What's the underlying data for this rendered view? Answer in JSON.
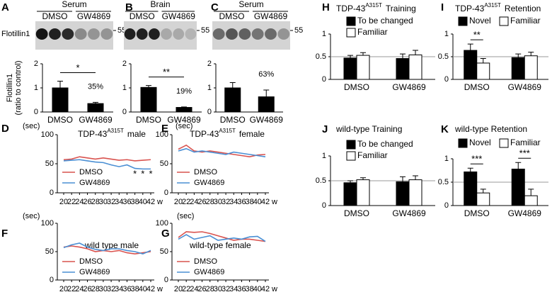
{
  "chart_data": [
    {
      "type": "bar",
      "panel": "A",
      "blot_title": "Serum",
      "blot_labels": [
        "DMSO",
        "GW4869"
      ],
      "blot_marker": "55",
      "blot_protein": "Flotillin1",
      "ylabel": [
        "Flotillin1",
        "(ratio to control)"
      ],
      "categories": [
        "DMSO",
        "GW4869"
      ],
      "values": [
        1.0,
        0.35
      ],
      "errors": [
        0.28,
        0.05
      ],
      "color": "#000000",
      "ylim": [
        0,
        2
      ],
      "yticks": [
        0,
        1,
        2
      ],
      "percent_label": "35%",
      "significance": "*"
    },
    {
      "type": "bar",
      "panel": "B",
      "blot_title": "Brain",
      "blot_labels": [
        "DMSO",
        "GW4869"
      ],
      "blot_marker": "55",
      "categories": [
        "DMSO",
        "GW4869"
      ],
      "values": [
        1.02,
        0.19
      ],
      "errors": [
        0.08,
        0.02
      ],
      "color": "#000000",
      "ylim": [
        0,
        2
      ],
      "yticks": [
        0,
        1,
        2
      ],
      "percent_label": "19%",
      "significance": "**"
    },
    {
      "type": "bar",
      "panel": "C",
      "blot_title": "Serum",
      "blot_labels": [
        "DMSO",
        "GW4869"
      ],
      "blot_marker": "55",
      "categories": [
        "DMSO",
        "GW4869"
      ],
      "values": [
        1.0,
        0.63
      ],
      "errors": [
        0.22,
        0.28
      ],
      "color": "#000000",
      "ylim": [
        0,
        2
      ],
      "yticks": [
        0,
        1,
        2
      ],
      "percent_label": "63%"
    },
    {
      "type": "line",
      "panel": "D",
      "title": {
        "main": "TDP-43",
        "sup": "A315T",
        "rest": "male"
      },
      "ylabel": "(sec)",
      "x_unit": "w",
      "x": [
        20,
        22,
        24,
        26,
        28,
        30,
        32,
        34,
        36,
        38,
        40,
        42
      ],
      "series": [
        {
          "name": "DMSO",
          "color": "#d9534f",
          "values": [
            57,
            58,
            62,
            60,
            58,
            60,
            58,
            56,
            57,
            55,
            56,
            57
          ]
        },
        {
          "name": "GW4869",
          "color": "#4a8fd4",
          "values": [
            55,
            56,
            57,
            55,
            53,
            52,
            48,
            45,
            48,
            42,
            41,
            41
          ]
        }
      ],
      "xlim": [
        20,
        42
      ],
      "xticks": [
        20,
        22,
        24,
        26,
        28,
        30,
        32,
        34,
        36,
        38,
        40,
        42
      ],
      "ylim": [
        0,
        100
      ],
      "yticks": [
        0,
        50,
        100
      ],
      "significance_x": [
        38,
        40,
        42
      ],
      "significance_labels": [
        "*",
        "*",
        "*"
      ]
    },
    {
      "type": "line",
      "panel": "E",
      "title": {
        "main": "TDP-43",
        "sup": "A315T",
        "rest": "female"
      },
      "ylabel": "(sec)",
      "x_unit": "w",
      "x": [
        20,
        22,
        24,
        26,
        28,
        30,
        32,
        34,
        36,
        38,
        40,
        42
      ],
      "series": [
        {
          "name": "DMSO",
          "color": "#d9534f",
          "values": [
            75,
            82,
            72,
            70,
            72,
            70,
            68,
            66,
            64,
            62,
            65,
            66
          ]
        },
        {
          "name": "GW4869",
          "color": "#4a8fd4",
          "values": [
            72,
            76,
            70,
            72,
            70,
            68,
            66,
            70,
            68,
            66,
            64,
            62
          ]
        }
      ],
      "xlim": [
        20,
        42
      ],
      "xticks": [
        20,
        22,
        24,
        26,
        28,
        30,
        32,
        34,
        36,
        38,
        40,
        42
      ],
      "ylim": [
        0,
        100
      ],
      "yticks": [
        0,
        50,
        100
      ]
    },
    {
      "type": "line",
      "panel": "F",
      "title": "wild type  male",
      "ylabel": "(sec)",
      "x_unit": "w",
      "x": [
        20,
        22,
        24,
        26,
        28,
        30,
        32,
        34,
        36,
        38,
        40,
        42
      ],
      "series": [
        {
          "name": "DMSO",
          "color": "#d9534f",
          "values": [
            58,
            60,
            58,
            55,
            50,
            52,
            50,
            52,
            48,
            46,
            48,
            50
          ]
        },
        {
          "name": "GW4869",
          "color": "#4a8fd4",
          "values": [
            57,
            62,
            65,
            58,
            54,
            52,
            55,
            55,
            52,
            50,
            46,
            52
          ]
        }
      ],
      "xlim": [
        20,
        42
      ],
      "xticks": [
        20,
        22,
        24,
        26,
        28,
        30,
        32,
        34,
        36,
        38,
        40,
        42
      ],
      "ylim": [
        0,
        100
      ],
      "yticks": [
        0,
        50,
        100
      ]
    },
    {
      "type": "line",
      "panel": "G",
      "title": "wild-type  female",
      "ylabel": "(sec)",
      "x_unit": "w",
      "x": [
        20,
        22,
        24,
        26,
        28,
        30,
        32,
        34,
        36,
        38,
        40,
        42
      ],
      "series": [
        {
          "name": "DMSO",
          "color": "#d9534f",
          "values": [
            75,
            85,
            84,
            85,
            82,
            78,
            74,
            70,
            72,
            72,
            70,
            68
          ]
        },
        {
          "name": "GW4869",
          "color": "#4a8fd4",
          "values": [
            72,
            80,
            72,
            75,
            78,
            70,
            72,
            74,
            72,
            76,
            77,
            68
          ]
        }
      ],
      "xlim": [
        20,
        42
      ],
      "xticks": [
        20,
        22,
        24,
        26,
        28,
        30,
        32,
        34,
        36,
        38,
        40,
        42
      ],
      "ylim": [
        0,
        100
      ],
      "yticks": [
        0,
        50,
        100
      ]
    },
    {
      "type": "bar",
      "panel": "H",
      "title": {
        "main": "TDP-43",
        "sup": "A315T",
        "rest": "Training"
      },
      "categories": [
        "DMSO",
        "GW4869"
      ],
      "series": [
        {
          "name": "To be changed",
          "color": "#000000",
          "values": [
            0.47,
            0.46
          ],
          "errors": [
            0.06,
            0.1
          ]
        },
        {
          "name": "Familiar",
          "color": "#ffffff",
          "values": [
            0.53,
            0.54
          ],
          "errors": [
            0.06,
            0.1
          ]
        }
      ],
      "ylim": [
        0,
        1
      ],
      "yticks": [
        0,
        0.5,
        1
      ],
      "reference_line": 0.5
    },
    {
      "type": "bar",
      "panel": "I",
      "title": {
        "main": "TDP-43",
        "sup": "A315T",
        "rest": "Retention"
      },
      "categories": [
        "DMSO",
        "GW4869"
      ],
      "series": [
        {
          "name": "Novel",
          "color": "#000000",
          "values": [
            0.64,
            0.48
          ],
          "errors": [
            0.14,
            0.08
          ]
        },
        {
          "name": "Familiar",
          "color": "#ffffff",
          "values": [
            0.36,
            0.52
          ],
          "errors": [
            0.1,
            0.08
          ]
        }
      ],
      "ylim": [
        0,
        1
      ],
      "yticks": [
        0,
        0.5,
        1
      ],
      "reference_line": 0.5,
      "significance": [
        "**",
        null
      ]
    },
    {
      "type": "bar",
      "panel": "J",
      "title": "wild-type  Training",
      "categories": [
        "DMSO",
        "GW4869"
      ],
      "series": [
        {
          "name": "To be changed",
          "color": "#000000",
          "values": [
            0.46,
            0.48
          ],
          "errors": [
            0.04,
            0.1
          ]
        },
        {
          "name": "Familiar",
          "color": "#ffffff",
          "values": [
            0.52,
            0.52
          ],
          "errors": [
            0.04,
            0.08
          ]
        }
      ],
      "ylim": [
        0,
        1
      ],
      "yticks": [
        0,
        0.5,
        1
      ],
      "reference_line": 0.5
    },
    {
      "type": "bar",
      "panel": "K",
      "title": "wild-type  Retention",
      "categories": [
        "DMSO",
        "GW4869"
      ],
      "series": [
        {
          "name": "Novel",
          "color": "#000000",
          "values": [
            0.72,
            0.78
          ],
          "errors": [
            0.08,
            0.14
          ]
        },
        {
          "name": "Familiar",
          "color": "#ffffff",
          "values": [
            0.27,
            0.21
          ],
          "errors": [
            0.08,
            0.14
          ]
        }
      ],
      "ylim": [
        0,
        1
      ],
      "yticks": [
        0,
        0.5,
        1
      ],
      "reference_line": 0.5,
      "significance": [
        "***",
        "***"
      ]
    }
  ]
}
